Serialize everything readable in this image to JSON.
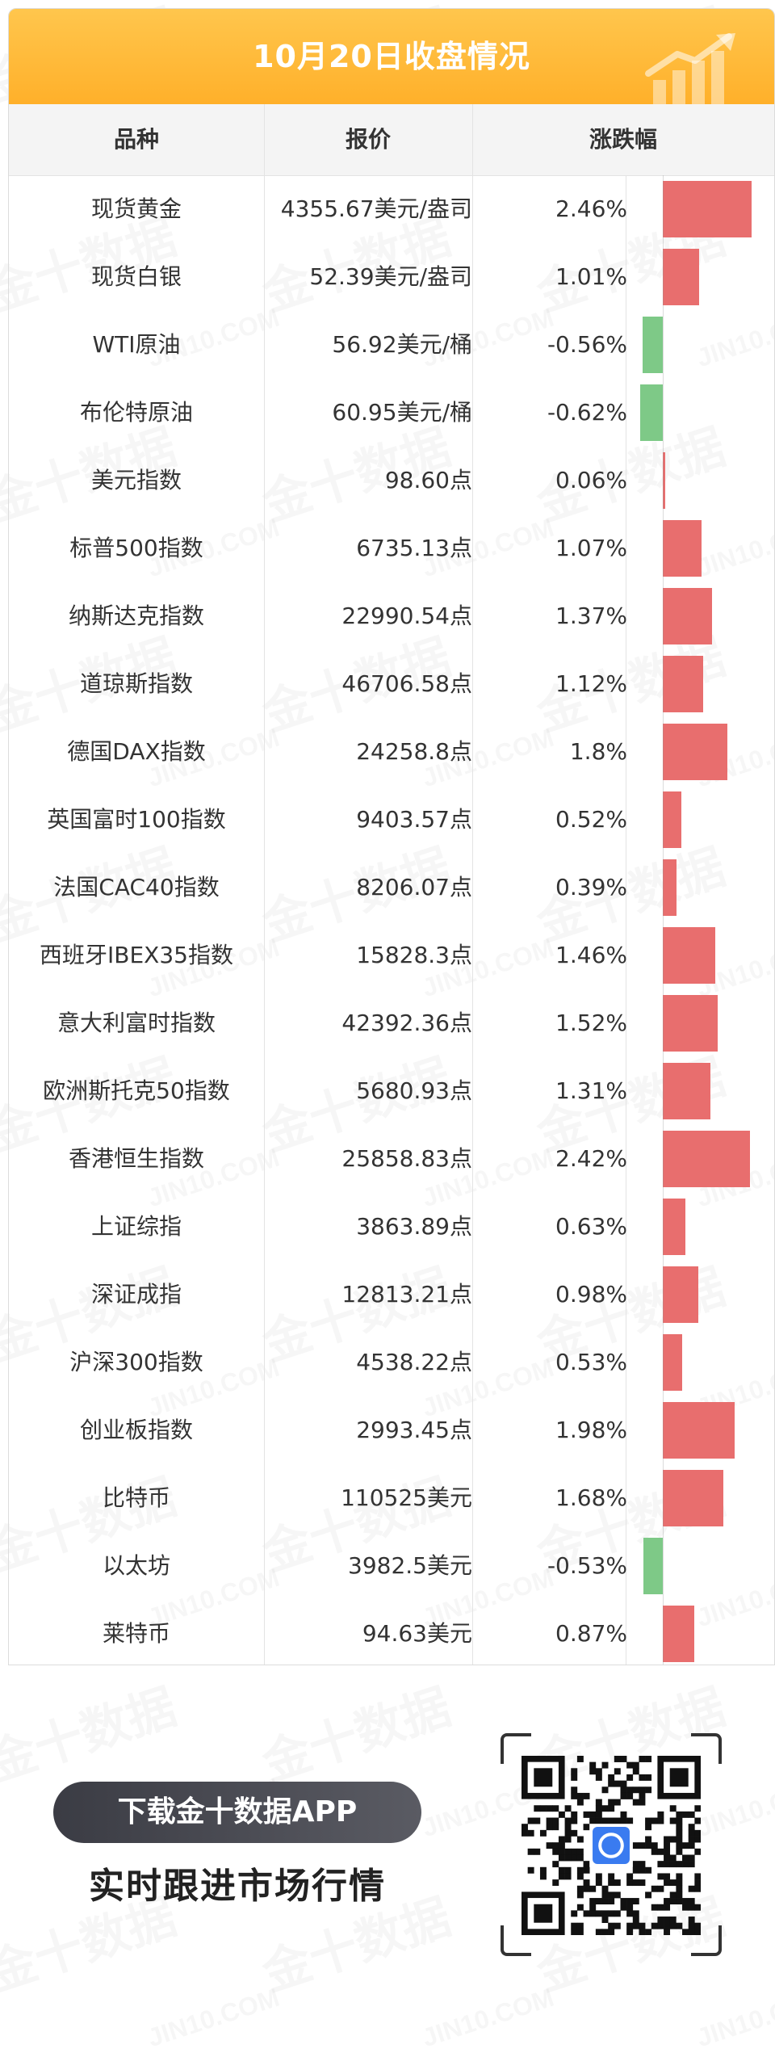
{
  "header": {
    "title": "10月20日收盘情况"
  },
  "table": {
    "headers": [
      "品种",
      "报价",
      "涨跌幅"
    ],
    "rows": [
      {
        "name": "现货黄金",
        "price": "4355.67美元/盎司",
        "change": "2.46%",
        "pct": 2.46
      },
      {
        "name": "现货白银",
        "price": "52.39美元/盎司",
        "change": "1.01%",
        "pct": 1.01
      },
      {
        "name": "WTI原油",
        "price": "56.92美元/桶",
        "change": "-0.56%",
        "pct": -0.56
      },
      {
        "name": "布伦特原油",
        "price": "60.95美元/桶",
        "change": "-0.62%",
        "pct": -0.62
      },
      {
        "name": "美元指数",
        "price": "98.60点",
        "change": "0.06%",
        "pct": 0.06
      },
      {
        "name": "标普500指数",
        "price": "6735.13点",
        "change": "1.07%",
        "pct": 1.07
      },
      {
        "name": "纳斯达克指数",
        "price": "22990.54点",
        "change": "1.37%",
        "pct": 1.37
      },
      {
        "name": "道琼斯指数",
        "price": "46706.58点",
        "change": "1.12%",
        "pct": 1.12
      },
      {
        "name": "德国DAX指数",
        "price": "24258.8点",
        "change": "1.8%",
        "pct": 1.8
      },
      {
        "name": "英国富时100指数",
        "price": "9403.57点",
        "change": "0.52%",
        "pct": 0.52
      },
      {
        "name": "法国CAC40指数",
        "price": "8206.07点",
        "change": "0.39%",
        "pct": 0.39
      },
      {
        "name": "西班牙IBEX35指数",
        "price": "15828.3点",
        "change": "1.46%",
        "pct": 1.46
      },
      {
        "name": "意大利富时指数",
        "price": "42392.36点",
        "change": "1.52%",
        "pct": 1.52
      },
      {
        "name": "欧洲斯托克50指数",
        "price": "5680.93点",
        "change": "1.31%",
        "pct": 1.31
      },
      {
        "name": "香港恒生指数",
        "price": "25858.83点",
        "change": "2.42%",
        "pct": 2.42
      },
      {
        "name": "上证综指",
        "price": "3863.89点",
        "change": "0.63%",
        "pct": 0.63
      },
      {
        "name": "深证成指",
        "price": "12813.21点",
        "change": "0.98%",
        "pct": 0.98
      },
      {
        "name": "沪深300指数",
        "price": "4538.22点",
        "change": "0.53%",
        "pct": 0.53
      },
      {
        "name": "创业板指数",
        "price": "2993.45点",
        "change": "1.98%",
        "pct": 1.98
      },
      {
        "name": "比特币",
        "price": "110525美元",
        "change": "1.68%",
        "pct": 1.68
      },
      {
        "name": "以太坊",
        "price": "3982.5美元",
        "change": "-0.53%",
        "pct": -0.53
      },
      {
        "name": "莱特币",
        "price": "94.63美元",
        "change": "0.87%",
        "pct": 0.87
      }
    ]
  },
  "colors": {
    "header_bg": "#ffb02a",
    "up": "#e86e6e",
    "down": "#7ec987"
  },
  "footer": {
    "download_label": "下载金十数据APP",
    "tagline": "实时跟进市场行情"
  },
  "watermark": {
    "cn": "金十数据",
    "en": "JIN10.COM"
  }
}
